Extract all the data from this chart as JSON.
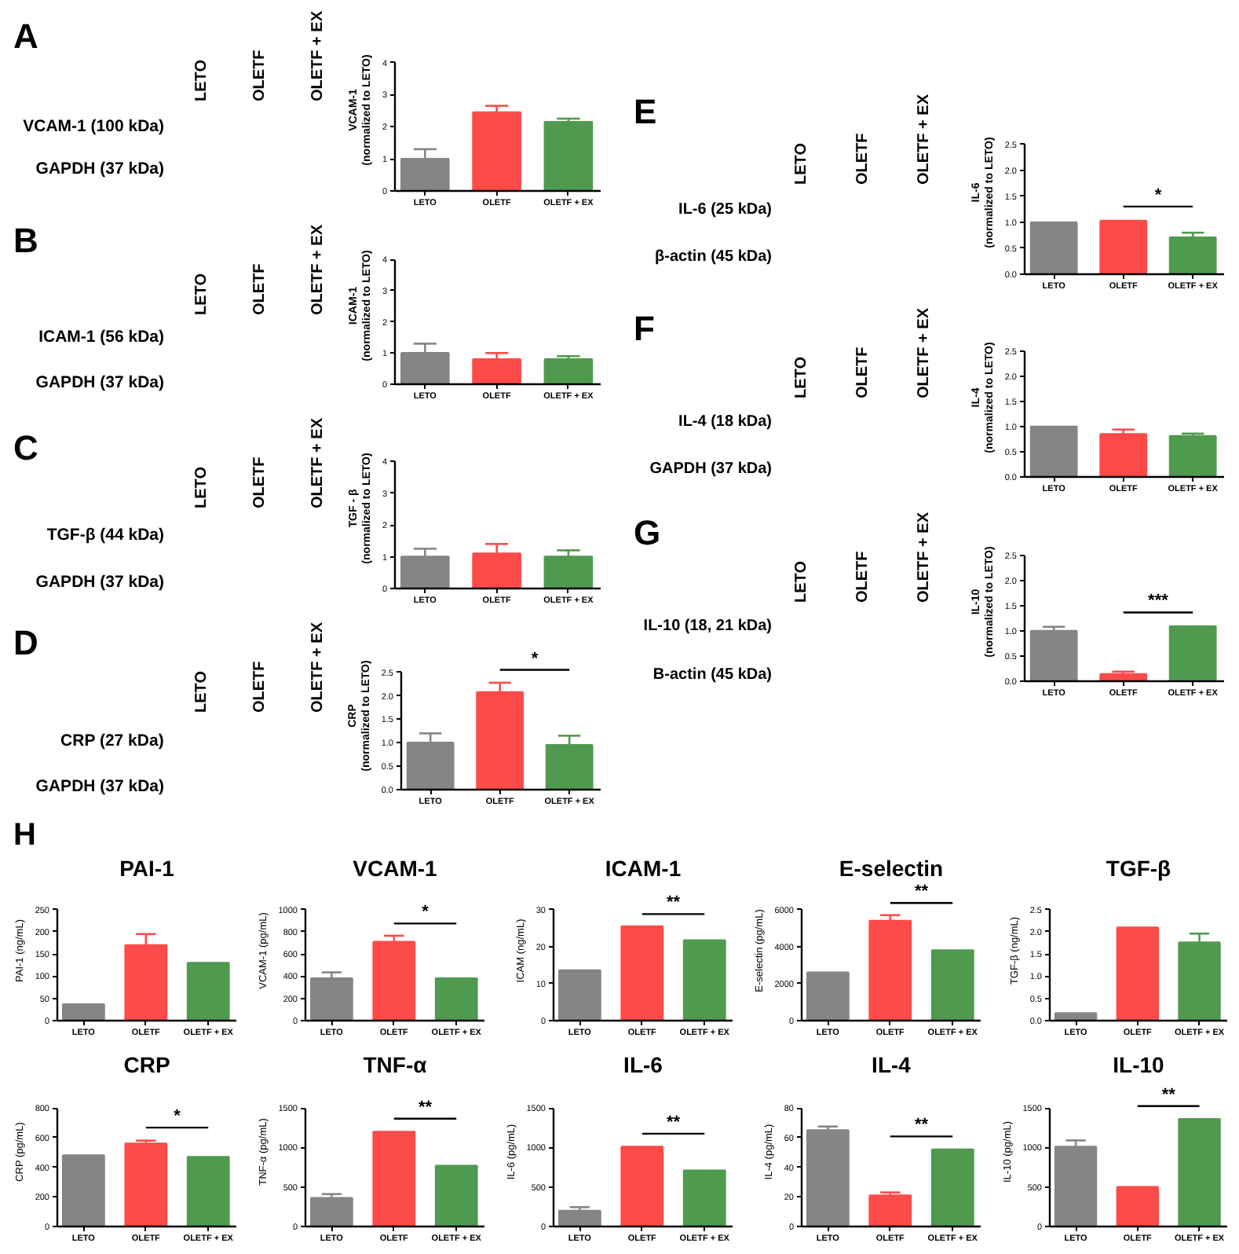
{
  "chart_data": [
    {
      "type": "other",
      "title": "A",
      "categories": [
        "LETO",
        "OLETF",
        "OLETF + EX"
      ],
      "annotations": [
        "VCAM-1 (100 kDa)",
        "GAPDH (37 kDa)"
      ]
    },
    {
      "type": "bar",
      "categories": [
        "LETO",
        "OLETF",
        "OLETF + EX"
      ],
      "values": [
        1.0,
        2.45,
        2.15
      ],
      "errors": [
        0.3,
        0.2,
        0.1
      ],
      "colors": [
        "#858585",
        "#ff4a4a",
        "#4f9a4f"
      ],
      "ylabel": "VCAM-1\n(normalized to LETO)",
      "ylim": [
        0,
        4
      ],
      "yticks": [
        0,
        1,
        2,
        3,
        4
      ]
    },
    {
      "type": "other",
      "title": "B",
      "categories": [
        "LETO",
        "OLETF",
        "OLETF + EX"
      ],
      "annotations": [
        "ICAM-1 (56 kDa)",
        "GAPDH (37 kDa)"
      ]
    },
    {
      "type": "bar",
      "categories": [
        "LETO",
        "OLETF",
        "OLETF + EX"
      ],
      "values": [
        1.0,
        0.8,
        0.8
      ],
      "errors": [
        0.3,
        0.2,
        0.1
      ],
      "colors": [
        "#858585",
        "#ff4a4a",
        "#4f9a4f"
      ],
      "ylabel": "ICAM-1\n(normalized to LETO)",
      "ylim": [
        0,
        4
      ],
      "yticks": [
        0,
        1,
        2,
        3,
        4
      ]
    },
    {
      "type": "other",
      "title": "C",
      "categories": [
        "LETO",
        "OLETF",
        "OLETF + EX"
      ],
      "annotations": [
        "TGF-β (44 kDa)",
        "GAPDH (37 kDa)"
      ]
    },
    {
      "type": "bar",
      "categories": [
        "LETO",
        "OLETF",
        "OLETF + EX"
      ],
      "values": [
        1.0,
        1.1,
        1.0
      ],
      "errors": [
        0.25,
        0.3,
        0.2
      ],
      "colors": [
        "#858585",
        "#ff4a4a",
        "#4f9a4f"
      ],
      "ylabel": "TGF - β\n(normalized to LETO)",
      "ylim": [
        0,
        4
      ],
      "yticks": [
        0,
        1,
        2,
        3,
        4
      ]
    },
    {
      "type": "other",
      "title": "D",
      "categories": [
        "LETO",
        "OLETF",
        "OLETF + EX"
      ],
      "annotations": [
        "CRP (27 kDa)",
        "GAPDH (37 kDa)"
      ]
    },
    {
      "type": "bar",
      "categories": [
        "LETO",
        "OLETF",
        "OLETF + EX"
      ],
      "values": [
        1.0,
        2.08,
        0.95
      ],
      "errors": [
        0.2,
        0.2,
        0.2
      ],
      "colors": [
        "#858585",
        "#ff4a4a",
        "#4f9a4f"
      ],
      "ylabel": "CRP\n(normalized to LETO)",
      "ylim": [
        0,
        2.5
      ],
      "yticks": [
        {
          "value": 0,
          "label": "0.0"
        },
        0.5,
        {
          "value": 1,
          "label": "1.0"
        },
        1.5,
        {
          "value": 2,
          "label": "2.0"
        },
        2.5
      ],
      "annotations": [
        "*"
      ]
    },
    {
      "type": "other",
      "title": "E",
      "categories": [
        "LETO",
        "OLETF",
        "OLETF + EX"
      ],
      "annotations": [
        "IL-6 (25 kDa)",
        "β-actin (45 kDa)"
      ]
    },
    {
      "type": "bar",
      "categories": [
        "LETO",
        "OLETF",
        "OLETF + EX"
      ],
      "values": [
        1.0,
        1.03,
        0.71
      ],
      "errors": [
        null,
        null,
        0.09
      ],
      "colors": [
        "#858585",
        "#ff4a4a",
        "#4f9a4f"
      ],
      "ylabel": "IL-6\n(normalized to LETO)",
      "ylim": [
        0,
        2.5
      ],
      "yticks": [
        {
          "value": 0,
          "label": "0.0"
        },
        0.5,
        {
          "value": 1,
          "label": "1.0"
        },
        1.5,
        {
          "value": 2,
          "label": "2.0"
        },
        2.5
      ],
      "annotations": [
        "*"
      ]
    },
    {
      "type": "other",
      "title": "F",
      "categories": [
        "LETO",
        "OLETF",
        "OLETF + EX"
      ],
      "annotations": [
        "IL-4 (18 kDa)",
        "GAPDH (37 kDa)"
      ]
    },
    {
      "type": "bar",
      "categories": [
        "LETO",
        "OLETF",
        "OLETF + EX"
      ],
      "values": [
        1.0,
        0.85,
        0.81
      ],
      "errors": [
        null,
        0.09,
        0.05
      ],
      "colors": [
        "#858585",
        "#ff4a4a",
        "#4f9a4f"
      ],
      "ylabel": "IL-4\n(normalized to LETO)",
      "ylim": [
        0,
        2.5
      ],
      "yticks": [
        {
          "value": 0,
          "label": "0.0"
        },
        0.5,
        {
          "value": 1,
          "label": "1.0"
        },
        1.5,
        {
          "value": 2,
          "label": "2.0"
        },
        2.5
      ]
    },
    {
      "type": "other",
      "title": "G",
      "categories": [
        "LETO",
        "OLETF",
        "OLETF + EX"
      ],
      "annotations": [
        "IL-10 (18, 21 kDa)",
        "B-actin (45 kDa)"
      ]
    },
    {
      "type": "bar",
      "categories": [
        "LETO",
        "OLETF",
        "OLETF + EX"
      ],
      "values": [
        1.0,
        0.14,
        1.09
      ],
      "errors": [
        0.08,
        0.05,
        null
      ],
      "colors": [
        "#858585",
        "#ff4a4a",
        "#4f9a4f"
      ],
      "ylabel": "IL-10\n(normalized to LETO)",
      "ylim": [
        0,
        2.5
      ],
      "yticks": [
        {
          "value": 0,
          "label": "0.0"
        },
        0.5,
        {
          "value": 1,
          "label": "1.0"
        },
        1.5,
        {
          "value": 2,
          "label": "2.0"
        },
        2.5
      ],
      "annotations": [
        "***"
      ]
    },
    {
      "type": "other",
      "title": "H"
    },
    {
      "type": "bar",
      "title": "PAI-1",
      "categories": [
        "LETO",
        "OLETF",
        "OLETF + EX"
      ],
      "values": [
        37,
        170,
        130
      ],
      "errors": [
        null,
        25,
        null
      ],
      "colors": [
        "#858585",
        "#ff4a4a",
        "#4f9a4f"
      ],
      "ylabel": "PAI-1 (ng/mL)",
      "ylim": [
        0,
        250
      ],
      "yticks": [
        0,
        50,
        100,
        150,
        200,
        250
      ]
    },
    {
      "type": "bar",
      "title": "VCAM-1",
      "categories": [
        "LETO",
        "OLETF",
        "OLETF + EX"
      ],
      "values": [
        380,
        710,
        380
      ],
      "errors": [
        55,
        55,
        null
      ],
      "colors": [
        "#858585",
        "#ff4a4a",
        "#4f9a4f"
      ],
      "ylabel": "VCAM-1 (pg/mL)",
      "ylim": [
        0,
        1000
      ],
      "yticks": [
        0,
        200,
        400,
        600,
        800,
        1000
      ],
      "annotations": [
        "*"
      ]
    },
    {
      "type": "bar",
      "title": "ICAM-1",
      "categories": [
        "LETO",
        "OLETF",
        "OLETF + EX"
      ],
      "values": [
        13.6,
        25.5,
        21.7
      ],
      "errors": [
        null,
        null,
        null
      ],
      "colors": [
        "#858585",
        "#ff4a4a",
        "#4f9a4f"
      ],
      "ylabel": "ICAM (ng/mL)",
      "ylim": [
        0,
        30
      ],
      "yticks": [
        0,
        10,
        20,
        30
      ],
      "annotations": [
        "**"
      ]
    },
    {
      "type": "bar",
      "title": "E-selectin",
      "categories": [
        "LETO",
        "OLETF",
        "OLETF + EX"
      ],
      "values": [
        2600,
        5400,
        3800
      ],
      "errors": [
        null,
        300,
        null
      ],
      "colors": [
        "#858585",
        "#ff4a4a",
        "#4f9a4f"
      ],
      "ylabel": "E-selectin (pg/mL)",
      "ylim": [
        0,
        6000
      ],
      "yticks": [
        0,
        2000,
        4000,
        6000
      ],
      "annotations": [
        "**"
      ]
    },
    {
      "type": "bar",
      "title": "TGF-β",
      "categories": [
        "LETO",
        "OLETF",
        "OLETF + EX"
      ],
      "values": [
        0.17,
        2.1,
        1.76
      ],
      "errors": [
        null,
        null,
        0.2
      ],
      "colors": [
        "#858585",
        "#ff4a4a",
        "#4f9a4f"
      ],
      "ylabel": "TGF-β (ng/mL)",
      "ylim": [
        0,
        2.5
      ],
      "yticks": [
        {
          "value": 0,
          "label": "0.0"
        },
        0.5,
        {
          "value": 1,
          "label": "1.0"
        },
        1.5,
        {
          "value": 2,
          "label": "2.0"
        },
        2.5
      ]
    },
    {
      "type": "bar",
      "title": "CRP",
      "categories": [
        "LETO",
        "OLETF",
        "OLETF + EX"
      ],
      "values": [
        480,
        560,
        470
      ],
      "errors": [
        null,
        20,
        null
      ],
      "colors": [
        "#858585",
        "#ff4a4a",
        "#4f9a4f"
      ],
      "ylabel": "CRP (pg/mL)",
      "ylim": [
        0,
        800
      ],
      "yticks": [
        0,
        200,
        400,
        600,
        800
      ],
      "annotations": [
        "*"
      ]
    },
    {
      "type": "bar",
      "title": "TNF-α",
      "categories": [
        "LETO",
        "OLETF",
        "OLETF + EX"
      ],
      "values": [
        360,
        1200,
        770
      ],
      "errors": [
        50,
        null,
        null
      ],
      "colors": [
        "#858585",
        "#ff4a4a",
        "#4f9a4f"
      ],
      "ylabel": "TNF-α (pg/mL)",
      "ylim": [
        0,
        1500
      ],
      "yticks": [
        0,
        500,
        1000,
        1500
      ],
      "annotations": [
        "**"
      ]
    },
    {
      "type": "bar",
      "title": "IL-6",
      "categories": [
        "LETO",
        "OLETF",
        "OLETF + EX"
      ],
      "values": [
        200,
        1010,
        710
      ],
      "errors": [
        45,
        null,
        null
      ],
      "colors": [
        "#858585",
        "#ff4a4a",
        "#4f9a4f"
      ],
      "ylabel": "IL-6 (pg/mL)",
      "ylim": [
        0,
        1500
      ],
      "yticks": [
        0,
        500,
        1000,
        1500
      ],
      "annotations": [
        "**"
      ]
    },
    {
      "type": "bar",
      "title": "IL-4",
      "categories": [
        "LETO",
        "OLETF",
        "OLETF + EX"
      ],
      "values": [
        65,
        21,
        52
      ],
      "errors": [
        2.5,
        2,
        null
      ],
      "colors": [
        "#858585",
        "#ff4a4a",
        "#4f9a4f"
      ],
      "ylabel": "IL-4 (pg/mL)",
      "ylim": [
        0,
        80
      ],
      "yticks": [
        0,
        20,
        40,
        60,
        80
      ],
      "annotations": [
        "**"
      ]
    },
    {
      "type": "bar",
      "title": "IL-10",
      "categories": [
        "LETO",
        "OLETF",
        "OLETF + EX"
      ],
      "values": [
        1010,
        500,
        1360
      ],
      "errors": [
        80,
        null,
        null
      ],
      "colors": [
        "#858585",
        "#ff4a4a",
        "#4f9a4f"
      ],
      "ylabel": "IL-10 (pg/mL)",
      "ylim": [
        0,
        1500
      ],
      "yticks": [
        0,
        500,
        1000,
        1500
      ],
      "annotations": [
        "**"
      ]
    }
  ]
}
